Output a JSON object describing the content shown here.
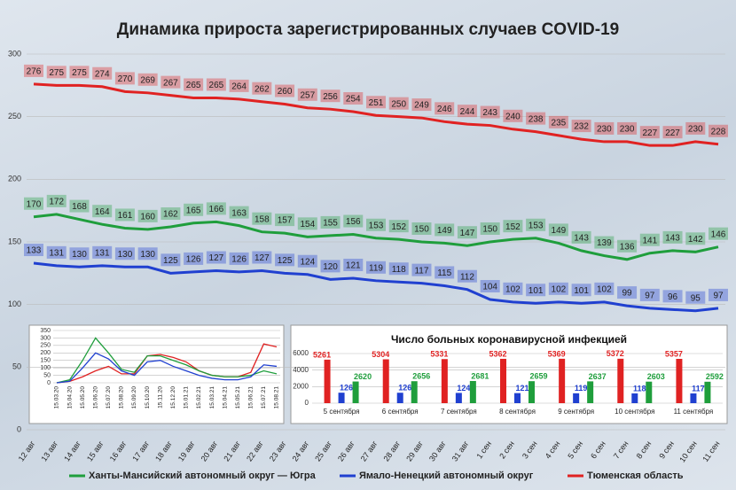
{
  "chart_data": [
    {
      "type": "line",
      "title": "Динамика прироста зарегистрированных случаев COVID-19",
      "categories": [
        "12 авг",
        "13 авг",
        "14 авг",
        "15 авг",
        "16 авг",
        "17 авг",
        "18 авг",
        "19 авг",
        "20 авг",
        "21 авг",
        "22 авг",
        "23 авг",
        "24 авг",
        "25 авг",
        "26 авг",
        "27 авг",
        "28 авг",
        "29 авг",
        "30 авг",
        "31 авг",
        "1 сен",
        "2 сен",
        "3 сен",
        "4 сен",
        "5 сен",
        "6 сен",
        "7 сен",
        "8 сен",
        "9 сен",
        "10 сен",
        "11 сен"
      ],
      "series": [
        {
          "name": "Ханты-Мансийский автономный округ — Югра",
          "color": "#1f9e3c",
          "values": [
            170,
            172,
            168,
            164,
            161,
            160,
            162,
            165,
            166,
            163,
            158,
            157,
            154,
            155,
            156,
            153,
            152,
            150,
            149,
            147,
            150,
            152,
            153,
            149,
            143,
            139,
            136,
            141,
            143,
            142,
            146
          ]
        },
        {
          "name": "Ямало-Ненецкий автономный округ",
          "color": "#2040d0",
          "values": [
            133,
            131,
            130,
            131,
            130,
            130,
            125,
            126,
            127,
            126,
            127,
            125,
            124,
            120,
            121,
            119,
            118,
            117,
            115,
            112,
            104,
            102,
            101,
            102,
            101,
            102,
            99,
            97,
            96,
            95,
            97
          ]
        },
        {
          "name": "Тюменская область",
          "color": "#e02222",
          "values": [
            276,
            275,
            275,
            274,
            270,
            269,
            267,
            265,
            265,
            264,
            262,
            260,
            257,
            256,
            254,
            251,
            250,
            249,
            246,
            244,
            243,
            240,
            238,
            235,
            232,
            230,
            230,
            227,
            227,
            230,
            228
          ]
        }
      ],
      "ylim": [
        0,
        300
      ],
      "yticks": [
        0,
        50,
        100,
        150,
        200,
        250,
        300
      ],
      "grid": true,
      "legend": "bottom"
    },
    {
      "type": "line",
      "categories": [
        "15.03.20",
        "15.04.20",
        "15.05.20",
        "15.06.20",
        "15.07.20",
        "15.08.20",
        "15.09.20",
        "15.10.20",
        "15.11.20",
        "15.12.20",
        "15.01.21",
        "15.02.21",
        "15.03.21",
        "15.04.21",
        "15.05.21",
        "15.06.21",
        "15.07.21",
        "15.08.21"
      ],
      "series": [
        {
          "color": "#e02222",
          "values": [
            0,
            10,
            40,
            80,
            110,
            60,
            60,
            180,
            190,
            170,
            140,
            80,
            50,
            40,
            40,
            70,
            260,
            240
          ]
        },
        {
          "color": "#1f9e3c",
          "values": [
            0,
            20,
            150,
            300,
            200,
            90,
            70,
            180,
            180,
            150,
            120,
            80,
            50,
            40,
            40,
            50,
            80,
            60
          ]
        },
        {
          "color": "#2040d0",
          "values": [
            0,
            10,
            100,
            200,
            160,
            80,
            50,
            140,
            150,
            110,
            80,
            50,
            30,
            20,
            20,
            40,
            120,
            110
          ]
        }
      ],
      "ylim": [
        0,
        350
      ],
      "yticks": [
        0,
        50,
        100,
        150,
        200,
        250,
        300,
        350
      ],
      "grid": true
    },
    {
      "type": "bar",
      "title": "Число больных коронавирусной  инфекцией",
      "categories": [
        "5 сентября",
        "6 сентября",
        "7 сентября",
        "8 сентября",
        "9 сентября",
        "10 сентября",
        "11 сентября"
      ],
      "series": [
        {
          "color": "#e02222",
          "values": [
            5261,
            5304,
            5331,
            5362,
            5369,
            5372,
            5357
          ]
        },
        {
          "color": "#2040d0",
          "values": [
            1266,
            1260,
            1240,
            1216,
            1194,
            1180,
            1177
          ]
        },
        {
          "color": "#1f9e3c",
          "values": [
            2620,
            2656,
            2681,
            2659,
            2637,
            2603,
            2592
          ]
        }
      ],
      "ylim": [
        0,
        6000
      ],
      "yticks": [
        0,
        2000,
        4000,
        6000
      ],
      "grid": true
    }
  ]
}
